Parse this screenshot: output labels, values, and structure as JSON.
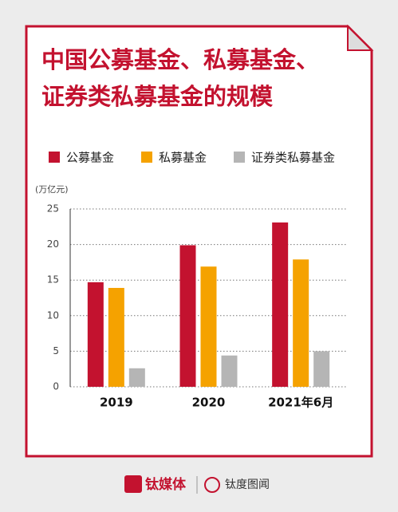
{
  "chart_data": {
    "type": "bar",
    "title": "中国公募基金、私募基金、证券类私募基金的规模",
    "y_label": "(万亿元)",
    "categories": [
      "2019",
      "2020",
      "2021年6月"
    ],
    "series": [
      {
        "name": "公募基金",
        "color": "#c3122f",
        "values": [
          14.7,
          19.9,
          23.1
        ]
      },
      {
        "name": "私募基金",
        "color": "#f5a200",
        "values": [
          13.9,
          16.9,
          17.9
        ]
      },
      {
        "name": "证券类私募基金",
        "color": "#b5b5b5",
        "values": [
          2.6,
          4.4,
          5.0
        ]
      }
    ],
    "ylim": [
      0,
      25
    ],
    "yticks": [
      0,
      5,
      10,
      15,
      20,
      25
    ],
    "grid": true
  },
  "footer": {
    "brand": "钛媒体",
    "partner": "钛度图闻"
  }
}
